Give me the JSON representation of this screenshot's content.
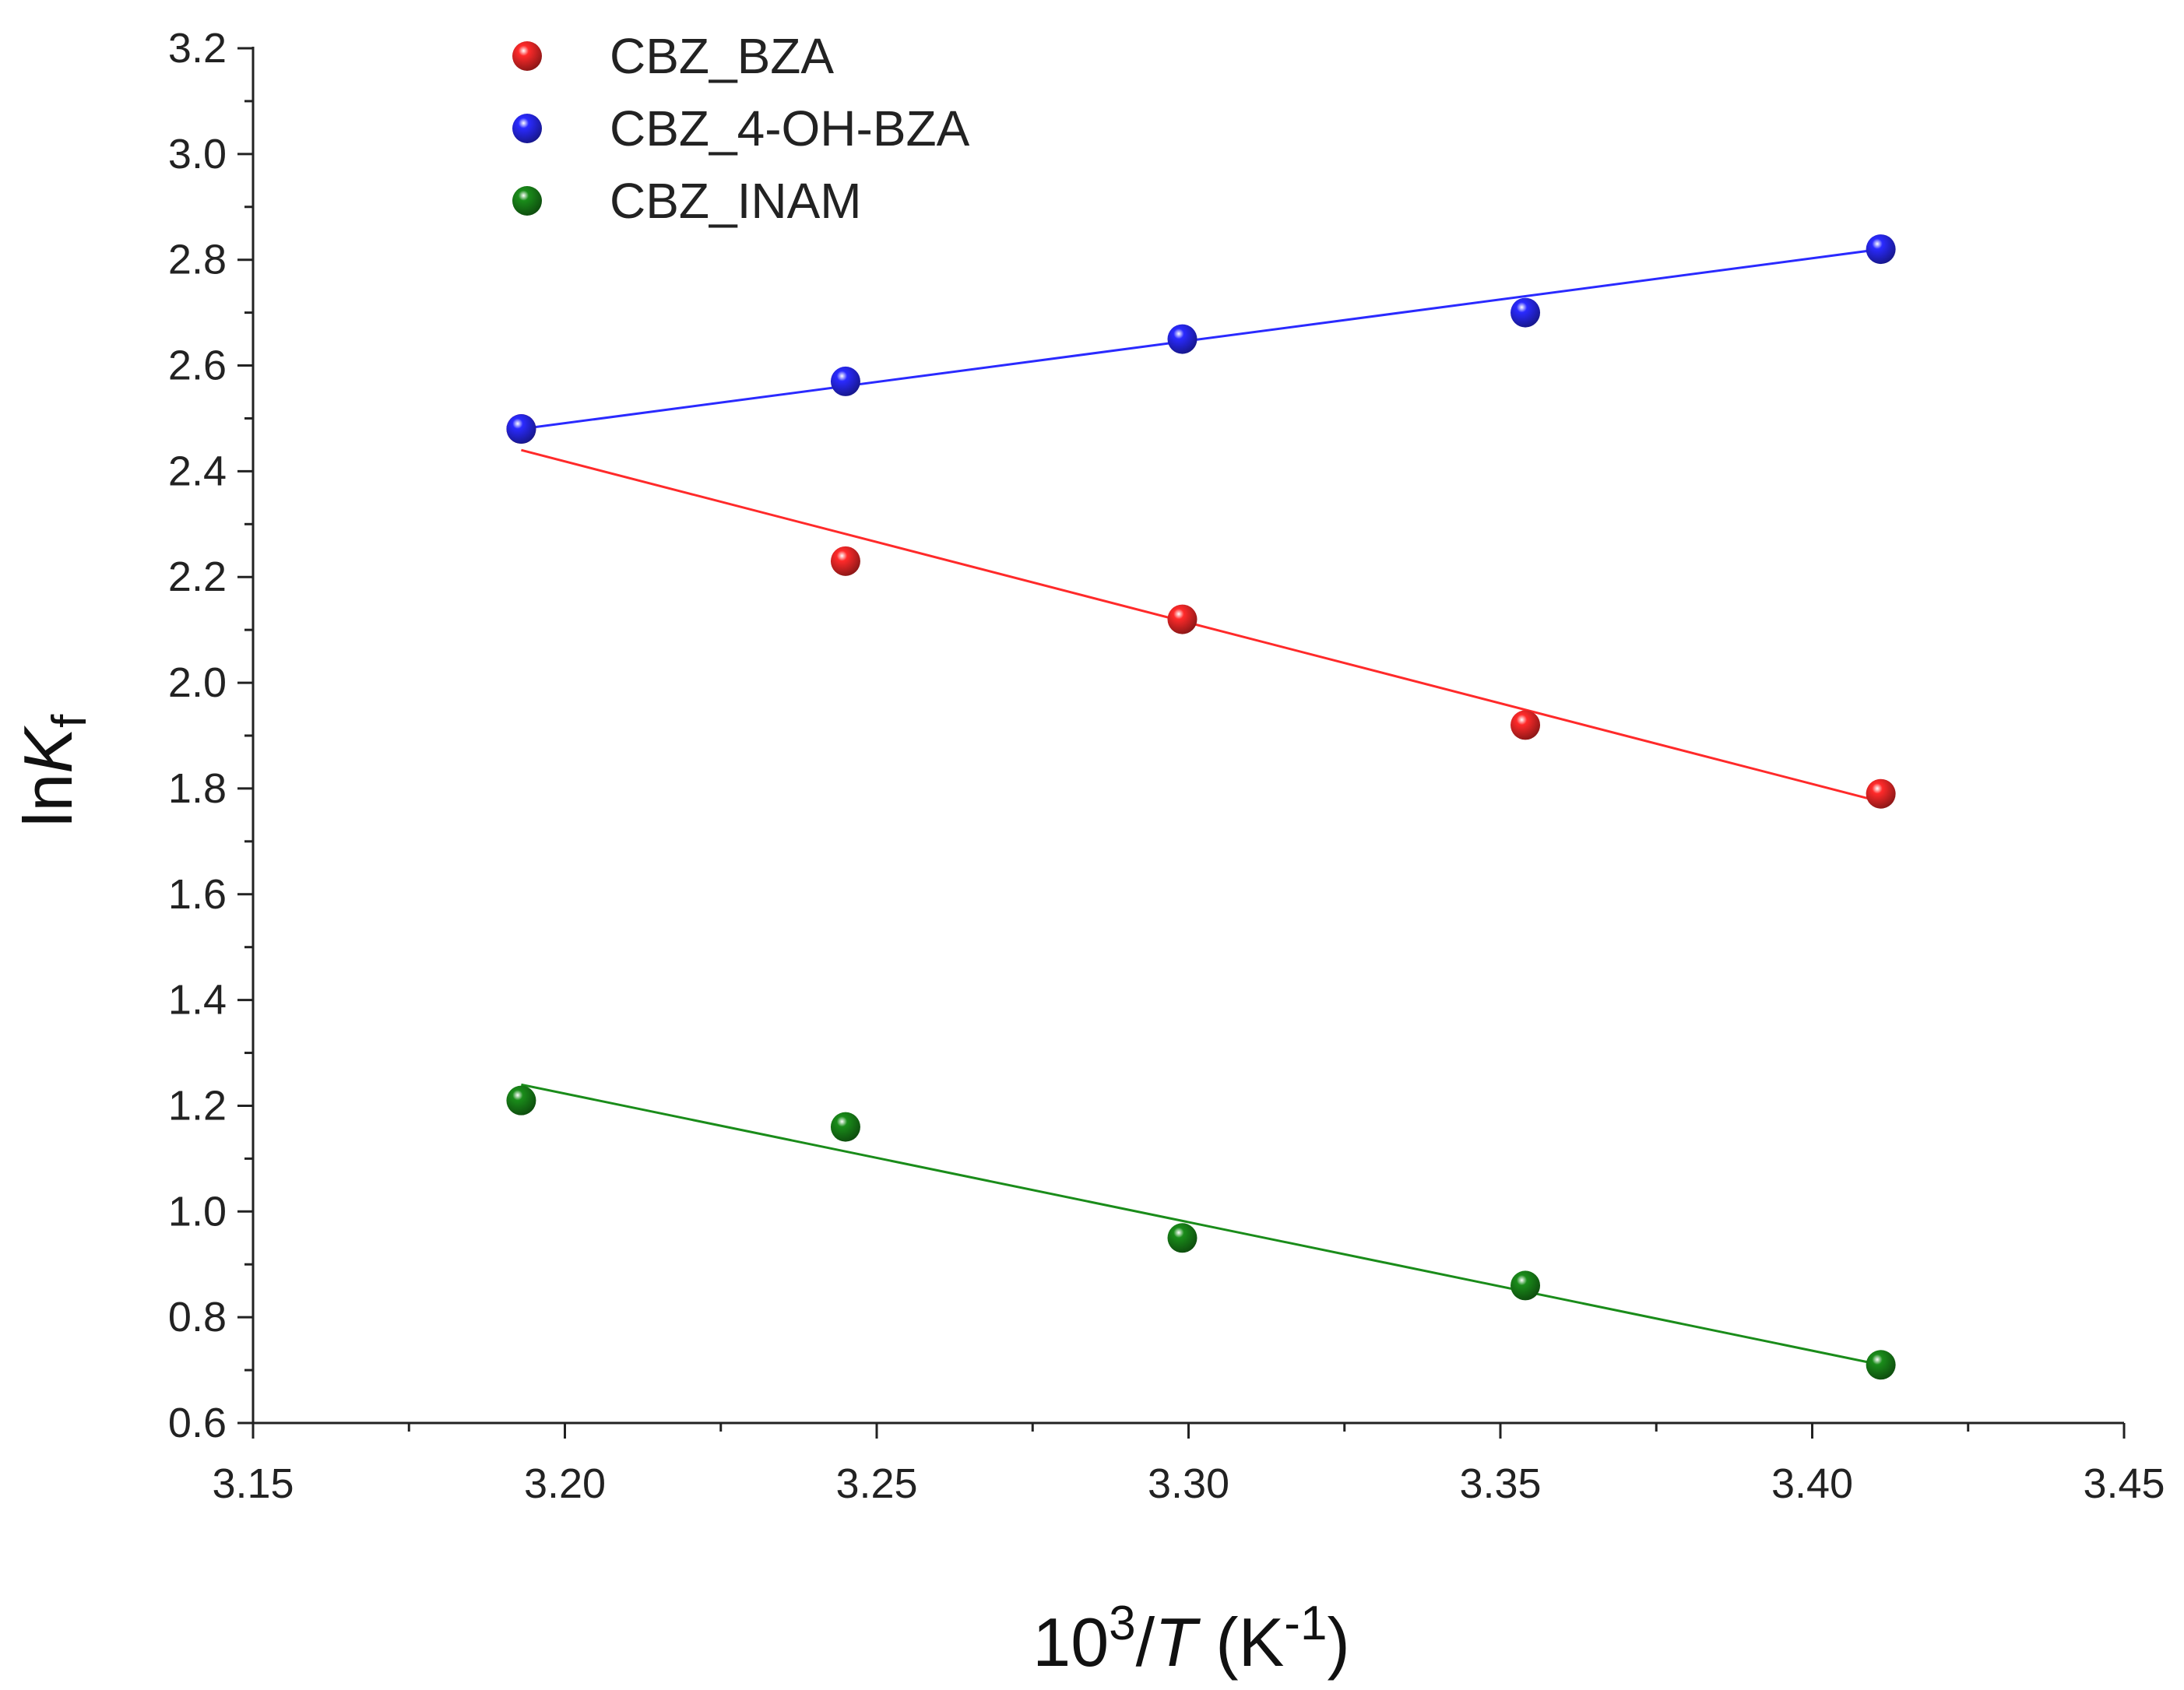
{
  "chart_data": {
    "type": "scatter",
    "title": "",
    "x_label": {
      "base": "10",
      "sup": "3",
      "sep": "/",
      "var": "T",
      "unit_open": " (K",
      "unit_sup": "-1",
      "unit_close": ")"
    },
    "y_label": {
      "prefix": "ln",
      "var": "K",
      "sub": "f"
    },
    "xlim": [
      3.15,
      3.45
    ],
    "ylim": [
      0.6,
      3.2
    ],
    "x_ticks": [
      "3.15",
      "3.20",
      "3.25",
      "3.30",
      "3.35",
      "3.40",
      "3.45"
    ],
    "y_ticks": [
      "0.6",
      "0.8",
      "1.0",
      "1.2",
      "1.4",
      "1.6",
      "1.8",
      "2.0",
      "2.2",
      "2.4",
      "2.6",
      "2.8",
      "3.0",
      "3.2"
    ],
    "grid": false,
    "legend_position": "top-left",
    "x": [
      3.193,
      3.245,
      3.299,
      3.354,
      3.411
    ],
    "series": [
      {
        "name": "CBZ_BZA",
        "color": "#ff2a2a",
        "values": [
          2.48,
          2.23,
          2.12,
          1.92,
          1.79
        ],
        "fit": {
          "x": [
            3.193,
            3.411
          ],
          "y": [
            2.44,
            1.775
          ]
        }
      },
      {
        "name": "CBZ_4-OH-BZA",
        "color": "#2a2aff",
        "values": [
          2.48,
          2.57,
          2.65,
          2.7,
          2.82
        ],
        "fit": {
          "x": [
            3.193,
            3.411
          ],
          "y": [
            2.48,
            2.82
          ]
        }
      },
      {
        "name": "CBZ_INAM",
        "color": "#1a8c1a",
        "values": [
          1.21,
          1.16,
          0.95,
          0.86,
          0.71
        ],
        "fit": {
          "x": [
            3.193,
            3.411
          ],
          "y": [
            1.24,
            0.71
          ]
        }
      }
    ]
  }
}
